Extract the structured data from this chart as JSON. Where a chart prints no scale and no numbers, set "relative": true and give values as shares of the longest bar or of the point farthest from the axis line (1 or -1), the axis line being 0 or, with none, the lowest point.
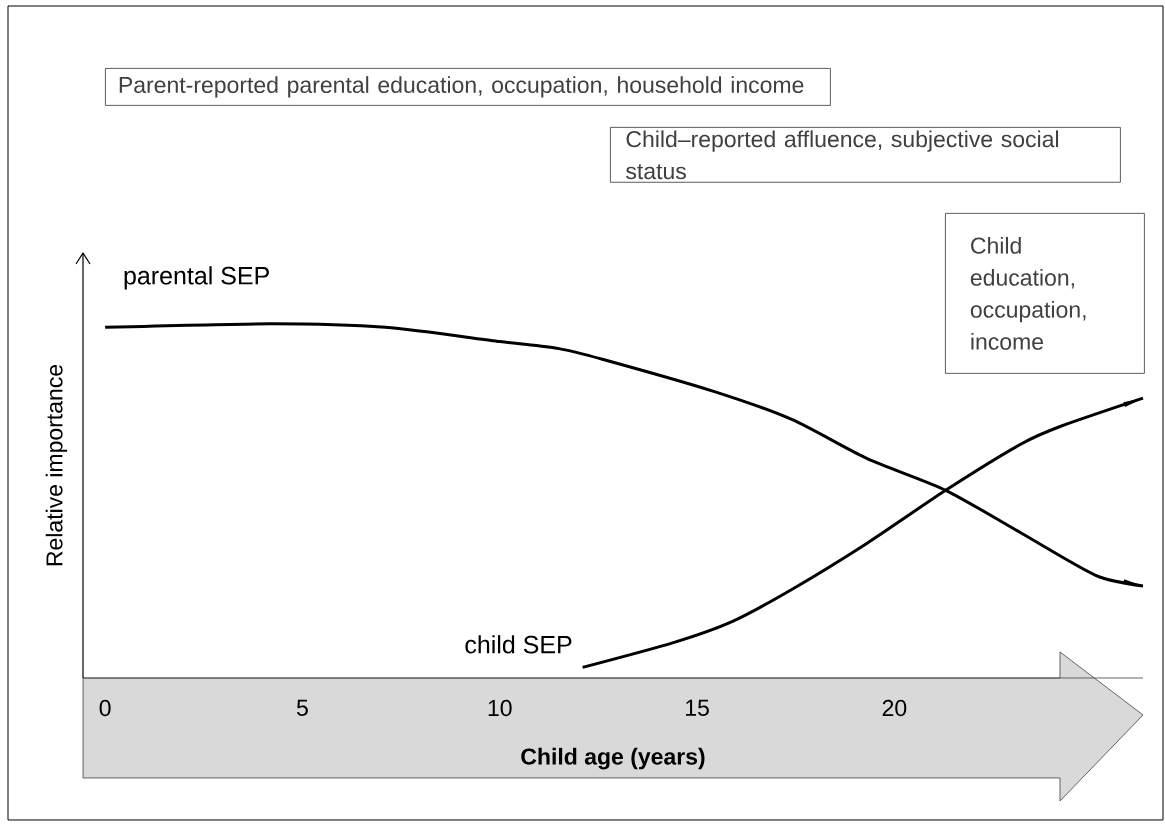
{
  "chart_data": {
    "type": "line",
    "relative": true,
    "xlabel": "Child age (years)",
    "ylabel": "Relative importance",
    "xlim": [
      -0.56,
      26.3
    ],
    "xticks": [
      0,
      5,
      10,
      15,
      20
    ],
    "series": [
      {
        "name": "parental SEP",
        "color": "#000000",
        "x": [
          0.0,
          4.2,
          7.1,
          10.0,
          11.5,
          12.6,
          15.4,
          17.4,
          19.3,
          21.3,
          23.2,
          25.1,
          26.3
        ],
        "values": [
          0.99,
          1.0,
          0.99,
          0.95,
          0.93,
          0.9,
          0.81,
          0.73,
          0.62,
          0.53,
          0.41,
          0.29,
          0.26
        ]
      },
      {
        "name": "child SEP",
        "color": "#000000",
        "x": [
          12.1,
          14.4,
          15.9,
          17.4,
          19.3,
          21.3,
          23.2,
          24.2,
          26.3
        ],
        "values": [
          0.03,
          0.1,
          0.16,
          0.25,
          0.38,
          0.53,
          0.66,
          0.71,
          0.79
        ]
      }
    ],
    "annotations": [
      "Parent-reported parental education, occupation, household income",
      "Child–reported affluence, subjective social status",
      "Child education, occupation, income"
    ]
  }
}
